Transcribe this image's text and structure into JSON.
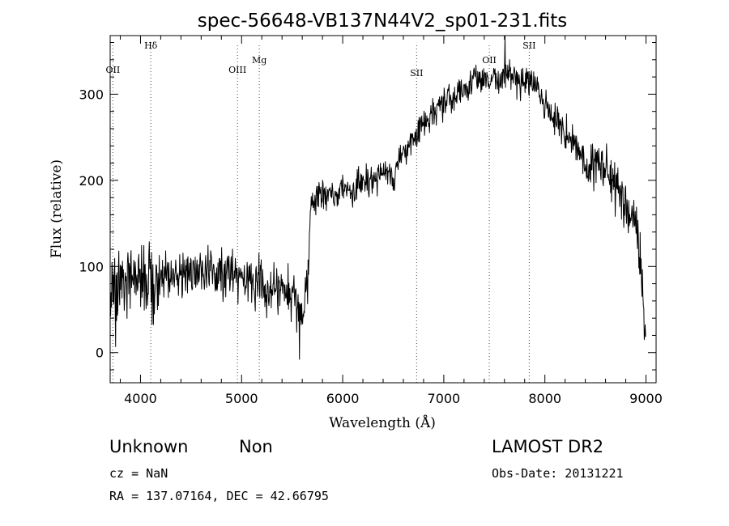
{
  "chart_data": {
    "type": "line",
    "title": "spec-56648-VB137N44V2_sp01-231.fits",
    "xlabel": "Wavelength (Å)",
    "ylabel": "Flux (relative)",
    "xlim": [
      3700,
      9100
    ],
    "ylim": [
      -35,
      368
    ],
    "xticks": [
      4000,
      5000,
      6000,
      7000,
      8000,
      9000
    ],
    "yticks": [
      0,
      100,
      200,
      300
    ],
    "grid": false,
    "line_color": "#000000",
    "series": [
      {
        "x": [
          3700,
          3750,
          3800,
          3850,
          3900,
          3950,
          4000,
          4050,
          4100,
          4150,
          4200,
          4250,
          4300,
          4350,
          4400,
          4450,
          4500,
          4550,
          4600,
          4650,
          4700,
          4750,
          4800,
          4850,
          4900,
          4950,
          5000,
          5050,
          5100,
          5150,
          5200,
          5250,
          5300,
          5350,
          5400,
          5450,
          5500,
          5550,
          5600,
          5650,
          5675,
          5700,
          5750,
          5800,
          5850,
          5900,
          5950,
          6000,
          6050,
          6100,
          6150,
          6200,
          6250,
          6300,
          6350,
          6400,
          6450,
          6500,
          6550,
          6600,
          6650,
          6700,
          6750,
          6800,
          6850,
          6900,
          6950,
          7000,
          7050,
          7100,
          7150,
          7200,
          7250,
          7300,
          7350,
          7400,
          7450,
          7500,
          7550,
          7600,
          7650,
          7700,
          7750,
          7800,
          7850,
          7900,
          7950,
          8000,
          8050,
          8100,
          8150,
          8200,
          8250,
          8300,
          8350,
          8400,
          8450,
          8500,
          8550,
          8600,
          8650,
          8700,
          8750,
          8800,
          8850,
          8900,
          8950,
          9000
        ],
        "y": [
          80,
          75,
          85,
          70,
          90,
          78,
          82,
          88,
          76,
          92,
          85,
          95,
          88,
          90,
          86,
          95,
          100,
          90,
          95,
          92,
          97,
          88,
          96,
          85,
          90,
          86,
          88,
          80,
          85,
          78,
          84,
          75,
          80,
          70,
          76,
          68,
          72,
          60,
          35,
          70,
          160,
          182,
          178,
          185,
          180,
          186,
          182,
          188,
          190,
          185,
          195,
          200,
          198,
          205,
          200,
          208,
          210,
          205,
          215,
          225,
          235,
          245,
          255,
          265,
          270,
          280,
          285,
          290,
          295,
          300,
          302,
          305,
          310,
          318,
          320,
          322,
          315,
          320,
          310,
          330,
          325,
          318,
          312,
          320,
          318,
          310,
          300,
          290,
          280,
          270,
          265,
          255,
          245,
          240,
          230,
          220,
          210,
          220,
          215,
          210,
          205,
          195,
          185,
          175,
          160,
          150,
          100,
          2
        ]
      }
    ],
    "line_markers": [
      {
        "label": "OII",
        "x": 3727
      },
      {
        "label": "Hδ",
        "x": 4102
      },
      {
        "label": "OIII",
        "x": 4959
      },
      {
        "label": "Mg",
        "x": 5175
      },
      {
        "label": "SII",
        "x": 6731
      },
      {
        "label": "OII",
        "x": 7450
      },
      {
        "label": "SII",
        "x": 7845
      }
    ]
  },
  "footer": {
    "classification": "Unknown",
    "subclass": "Non",
    "survey": "LAMOST DR2",
    "cz": "cz = NaN",
    "obs_date": "Obs-Date: 20131221",
    "radec": "RA = 137.07164, DEC =  42.66795"
  }
}
